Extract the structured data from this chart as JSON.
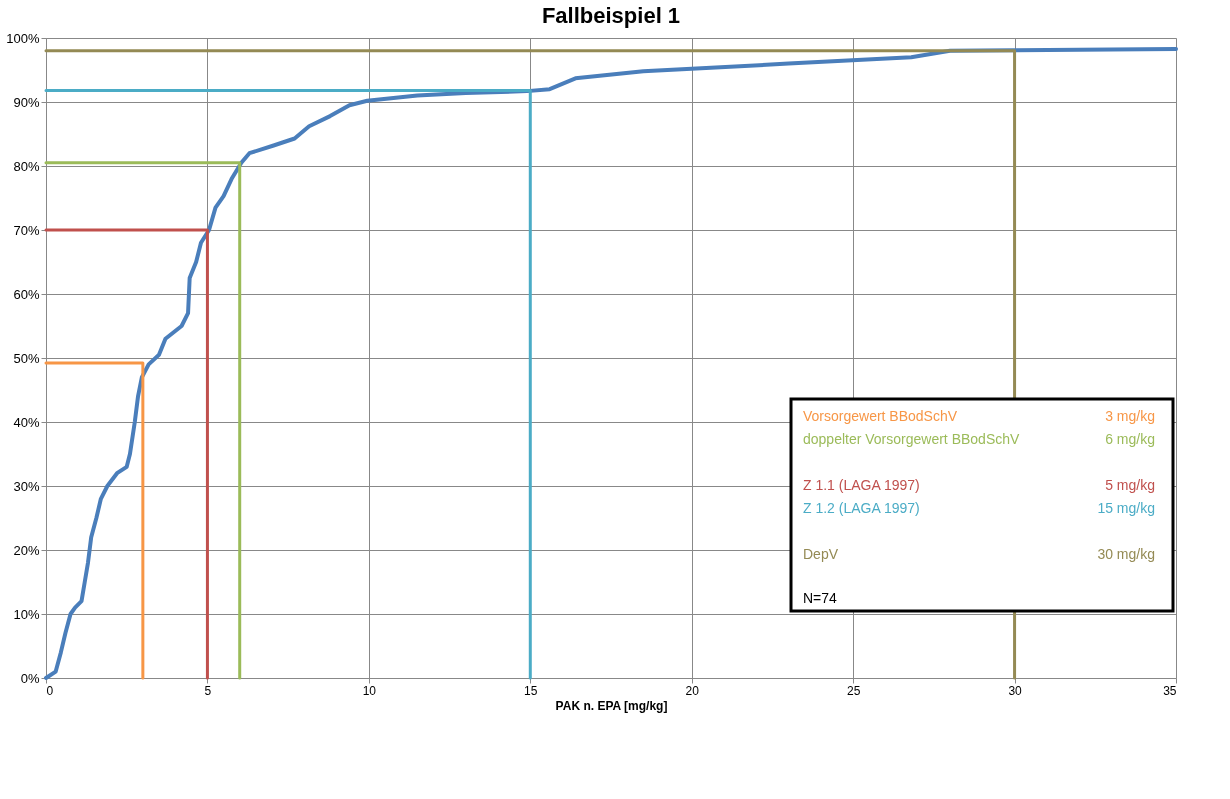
{
  "chart_data": {
    "type": "line",
    "title": "Fallbeispiel 1",
    "xlabel": "PAK n. EPA [mg/kg]",
    "xlim": [
      0,
      35
    ],
    "xticks": [
      0,
      5,
      10,
      15,
      20,
      25,
      30,
      35
    ],
    "ylim": [
      0,
      100
    ],
    "yticks": [
      {
        "value": 0,
        "label": "0%"
      },
      {
        "value": 10,
        "label": "10%"
      },
      {
        "value": 20,
        "label": "20%"
      },
      {
        "value": 30,
        "label": "30%"
      },
      {
        "value": 40,
        "label": "40%"
      },
      {
        "value": 50,
        "label": "50%"
      },
      {
        "value": 60,
        "label": "60%"
      },
      {
        "value": 70,
        "label": "70%"
      },
      {
        "value": 80,
        "label": "80%"
      },
      {
        "value": 90,
        "label": "90%"
      },
      {
        "value": 100,
        "label": "100%"
      }
    ],
    "grid": true,
    "legend": "bottom right",
    "marker": "none",
    "line_style": "solid",
    "series": [
      {
        "color": "#4a7ebb",
        "x": [
          0,
          0.3,
          0.46,
          0.6,
          0.76,
          0.9,
          1.1,
          1.2,
          1.3,
          1.4,
          1.56,
          1.7,
          1.9,
          2.2,
          2.5,
          2.6,
          2.75,
          2.85,
          2.97,
          3.18,
          3.5,
          3.7,
          4.2,
          4.4,
          4.45,
          4.65,
          4.8,
          5.05,
          5.25,
          5.5,
          5.75,
          6.05,
          6.3,
          7.05,
          7.7,
          8.15,
          8.8,
          9.4,
          9.95,
          11.5,
          13,
          14.9,
          15.6,
          16.4,
          18.5,
          23,
          26.8,
          28,
          30,
          35
        ],
        "values": [
          0,
          1,
          4,
          7,
          10,
          11,
          12,
          15,
          18,
          22,
          25,
          28,
          30,
          32,
          33,
          35,
          40,
          44,
          47,
          49,
          50.5,
          53,
          55,
          57,
          62.5,
          65,
          68,
          70,
          73.5,
          75.3,
          78,
          80.5,
          82,
          83.2,
          84.3,
          86.2,
          87.8,
          89.5,
          90.2,
          91,
          91.4,
          91.7,
          92,
          93.7,
          94.8,
          96,
          97,
          98,
          98.1,
          98.3
        ]
      },
      {
        "name": "Vorsorgewert  BBodSchV",
        "color": "#f79646",
        "x": [
          0,
          3,
          3
        ],
        "values": [
          49.2,
          49.2,
          0
        ]
      },
      {
        "name": "doppelter Vorsorgewert BBodSchV",
        "color": "#9bbb59",
        "x": [
          0,
          6,
          6
        ],
        "values": [
          80.5,
          80.5,
          0
        ]
      },
      {
        "name": "Z 1.1 (LAGA 1997)",
        "color": "#c0504d",
        "x": [
          0,
          5,
          5
        ],
        "values": [
          70,
          70,
          0
        ]
      },
      {
        "name": "Z 1.2 (LAGA 1997)",
        "color": "#4bacc6",
        "x": [
          0,
          15,
          15
        ],
        "values": [
          91.8,
          91.8,
          0
        ]
      },
      {
        "name": "DepV",
        "color": "#948a54",
        "x": [
          0,
          30,
          30
        ],
        "values": [
          98,
          98,
          0
        ]
      }
    ],
    "annotations": [
      "3 mg/kg",
      "6 mg/kg",
      "5 mg/kg",
      "15 mg/kg",
      "30 mg/kg",
      "N=74"
    ]
  }
}
